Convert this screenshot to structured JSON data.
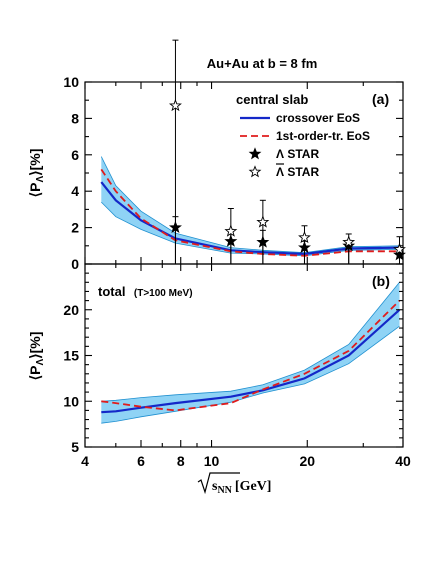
{
  "figure_title": "Au+Au at b = 8 fm",
  "colors": {
    "crossover": "#1428c8",
    "band": "#8fd3f5",
    "band_edge": "#2090d0",
    "first_order": "#e01c1c",
    "star": "#000000"
  },
  "x_axis": {
    "label": "√s_NN [GeV]",
    "label_main": "s",
    "label_sub": "NN",
    "label_unit": "[GeV]",
    "scale": "log",
    "range": [
      4,
      40
    ],
    "ticks": [
      "4",
      "6",
      "8",
      "10",
      "20",
      "40"
    ]
  },
  "legend": {
    "placement": "top-right of panel (a)",
    "crossover": "crossover EoS",
    "first_order": "1st-order-tr. EoS",
    "star_lambda": "Λ STAR",
    "star_antilambda": "Λ STAR"
  },
  "chart_data": [
    {
      "type": "line",
      "panel_label": "(a)",
      "annotation": "central slab",
      "ylabel": "⟨P_Λ⟩ [%]",
      "ylim": [
        0,
        10
      ],
      "yticks": [
        "0",
        "2",
        "4",
        "6",
        "8",
        "10"
      ],
      "xscale": "log",
      "xlim": [
        4,
        40
      ],
      "series": [
        {
          "name": "crossover EoS",
          "style": "solid",
          "x": [
            4.5,
            5,
            6,
            7.7,
            11.5,
            14.5,
            19.6,
            27,
            39
          ],
          "y": [
            4.5,
            3.5,
            2.4,
            1.4,
            0.75,
            0.65,
            0.55,
            0.85,
            0.9
          ]
        },
        {
          "name": "crossover EoS band upper",
          "style": "band",
          "x": [
            4.5,
            5,
            6,
            7.7,
            11.5,
            14.5,
            19.6,
            27,
            39
          ],
          "y": [
            5.9,
            4.3,
            2.9,
            1.7,
            0.9,
            0.75,
            0.62,
            0.95,
            1.0
          ]
        },
        {
          "name": "crossover EoS band lower",
          "style": "band",
          "x": [
            4.5,
            5,
            6,
            7.7,
            11.5,
            14.5,
            19.6,
            27,
            39
          ],
          "y": [
            3.4,
            2.6,
            1.9,
            1.15,
            0.6,
            0.55,
            0.45,
            0.75,
            0.8
          ]
        },
        {
          "name": "1st-order-tr. EoS",
          "style": "dashed",
          "x": [
            4.5,
            5,
            6,
            7.7,
            11.5,
            14.5,
            19.6,
            27,
            39
          ],
          "y": [
            5.2,
            4.0,
            2.5,
            1.3,
            0.7,
            0.55,
            0.45,
            0.7,
            0.7
          ]
        },
        {
          "name": "Λ STAR",
          "style": "filled-star",
          "x": [
            7.7,
            11.5,
            14.5,
            19.6,
            27,
            39
          ],
          "y": [
            2.0,
            1.25,
            1.2,
            0.9,
            1.0,
            0.5
          ],
          "err": [
            0.6,
            0.65,
            0.65,
            0.35,
            0.3,
            0.4
          ]
        },
        {
          "name": "Λ̄ STAR",
          "style": "open-star",
          "x": [
            7.7,
            11.5,
            14.5,
            19.6,
            27,
            39
          ],
          "y": [
            8.7,
            1.8,
            2.3,
            1.45,
            1.2,
            0.8
          ],
          "err": [
            3.6,
            1.25,
            1.2,
            0.65,
            0.45,
            0.7
          ]
        }
      ]
    },
    {
      "type": "line",
      "panel_label": "(b)",
      "annotation_main": "total",
      "annotation_sub": "(T>100 MeV)",
      "ylabel": "⟨P_Λ⟩ [%]",
      "ylim": [
        5,
        25
      ],
      "yticks": [
        "5",
        "10",
        "15",
        "20"
      ],
      "xscale": "log",
      "xlim": [
        4,
        40
      ],
      "series": [
        {
          "name": "crossover EoS",
          "style": "solid",
          "x": [
            4.5,
            5,
            6,
            7.7,
            11.5,
            14.5,
            19.6,
            27,
            39
          ],
          "y": [
            8.8,
            8.9,
            9.3,
            9.8,
            10.5,
            11.2,
            12.5,
            15.0,
            20.0
          ]
        },
        {
          "name": "crossover EoS band upper",
          "style": "band",
          "x": [
            4.5,
            5,
            6,
            7.7,
            11.5,
            14.5,
            19.6,
            27,
            39
          ],
          "y": [
            10.0,
            10.1,
            10.4,
            10.7,
            11.1,
            11.8,
            13.4,
            16.2,
            23.0
          ]
        },
        {
          "name": "crossover EoS band lower",
          "style": "band",
          "x": [
            4.5,
            5,
            6,
            7.7,
            11.5,
            14.5,
            19.6,
            27,
            39
          ],
          "y": [
            7.6,
            7.8,
            8.3,
            8.9,
            9.9,
            10.9,
            11.9,
            14.1,
            18.2
          ]
        },
        {
          "name": "1st-order-tr. EoS",
          "style": "dashed",
          "x": [
            4.5,
            5,
            6,
            7.7,
            11.5,
            14.5,
            19.6,
            27,
            39
          ],
          "y": [
            10.0,
            9.8,
            9.4,
            9.0,
            9.8,
            11.3,
            13.0,
            15.5,
            21.0
          ]
        }
      ]
    }
  ]
}
